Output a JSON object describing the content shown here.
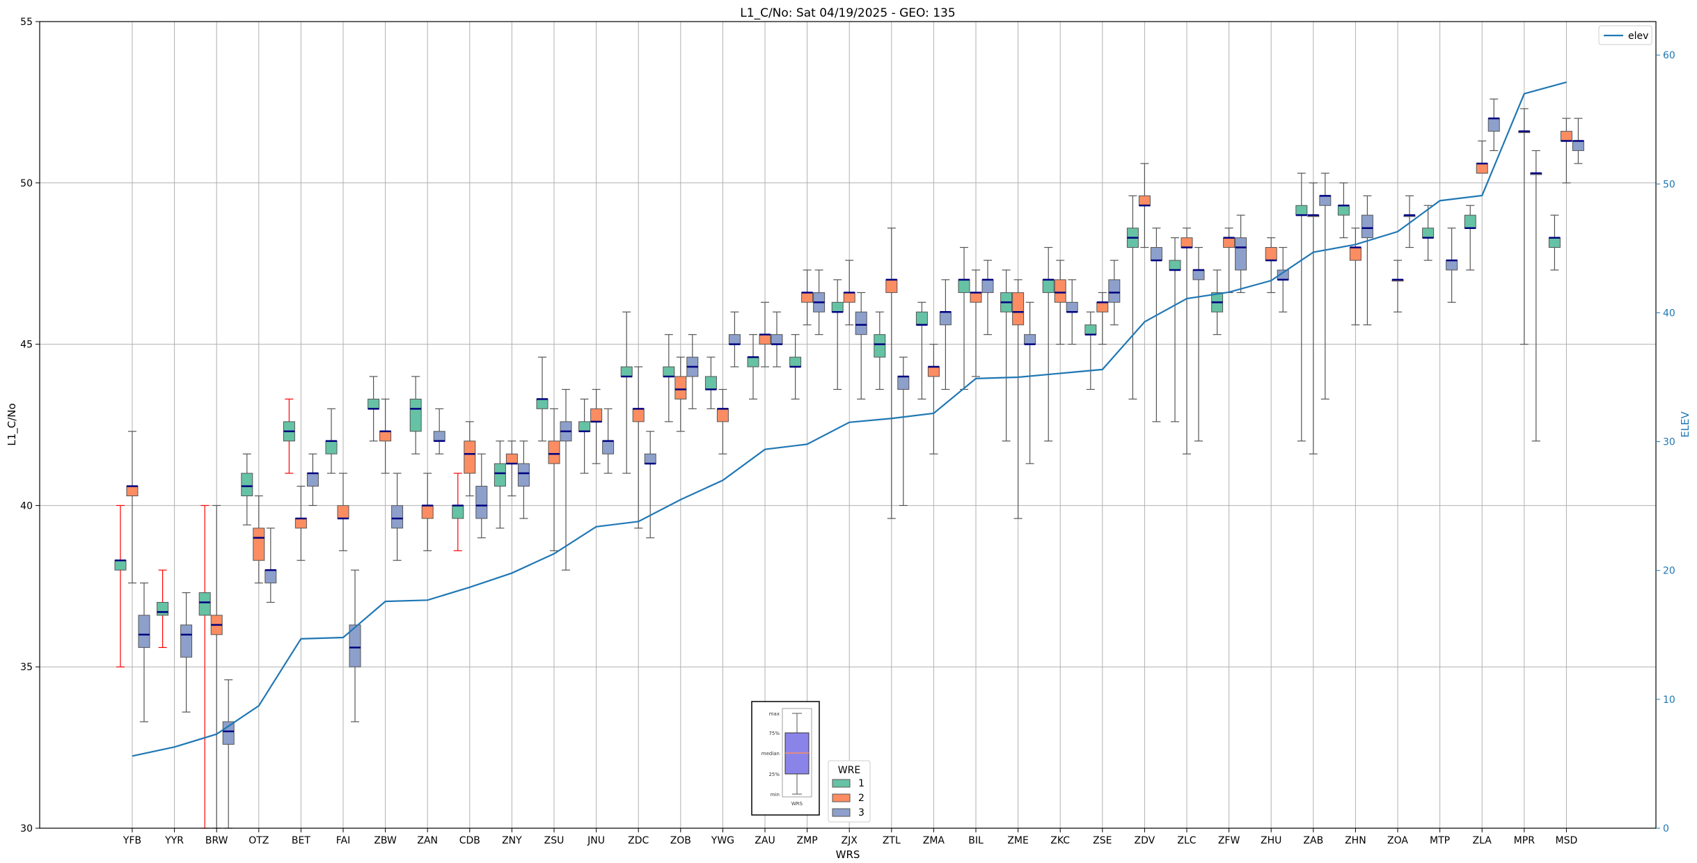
{
  "chart_data": {
    "type": "box",
    "title": "L1_C/No: Sat 04/19/2025 - GEO: 135",
    "xlabel": "WRS",
    "ylabel": "L1_C/No",
    "ylabel_right": "ELEV",
    "ylim": [
      30,
      55
    ],
    "ylim_right": [
      0,
      62.6
    ],
    "yticks": [
      30,
      35,
      40,
      45,
      50,
      55
    ],
    "yticks_right": [
      0,
      10,
      20,
      30,
      40,
      50,
      60
    ],
    "grid": true,
    "colors": {
      "wre1": "#66c2a5",
      "wre2": "#fc8d62",
      "wre3": "#8da0cb",
      "elev": "#1f77b4",
      "median": "#000080",
      "whisker": "#555555",
      "whisker_alt": "#ff0000"
    },
    "categories": [
      "YFB",
      "YYR",
      "BRW",
      "OTZ",
      "BET",
      "FAI",
      "ZBW",
      "ZAN",
      "CDB",
      "ZNY",
      "ZSU",
      "JNU",
      "ZDC",
      "ZOB",
      "YWG",
      "ZAU",
      "ZMP",
      "ZJX",
      "ZTL",
      "ZMA",
      "BIL",
      "ZME",
      "ZKC",
      "ZSE",
      "ZDV",
      "ZLC",
      "ZFW",
      "ZHU",
      "ZAB",
      "ZHN",
      "ZOA",
      "MTP",
      "ZLA",
      "MPR",
      "MSD"
    ],
    "elev": [
      5.6,
      6.3,
      7.3,
      9.5,
      14.7,
      14.8,
      17.6,
      17.7,
      18.7,
      19.8,
      21.3,
      23.4,
      23.8,
      25.5,
      27.0,
      29.4,
      29.8,
      31.5,
      31.8,
      32.2,
      34.9,
      35.0,
      35.3,
      35.6,
      39.3,
      41.1,
      41.6,
      42.5,
      44.7,
      45.3,
      46.3,
      48.7,
      49.1,
      57.0,
      57.9
    ],
    "series": [
      {
        "name": "1",
        "boxes": [
          {
            "cat": "YFB",
            "min": 35.0,
            "q1": 38.0,
            "med": 38.3,
            "q3": 38.3,
            "max": 40.0,
            "red": true
          },
          {
            "cat": "YYR",
            "min": 35.6,
            "q1": 36.6,
            "med": 36.7,
            "q3": 37.0,
            "max": 38.0,
            "red": true
          },
          {
            "cat": "BRW",
            "min": 30.0,
            "q1": 36.6,
            "med": 37.0,
            "q3": 37.3,
            "max": 40.0,
            "red": true
          },
          {
            "cat": "OTZ",
            "min": 39.4,
            "q1": 40.3,
            "med": 40.6,
            "q3": 41.0,
            "max": 41.6
          },
          {
            "cat": "BET",
            "min": 41.0,
            "q1": 42.0,
            "med": 42.3,
            "q3": 42.6,
            "max": 43.3,
            "red": true
          },
          {
            "cat": "FAI",
            "min": 41.0,
            "q1": 41.6,
            "med": 42.0,
            "q3": 42.0,
            "max": 43.0
          },
          {
            "cat": "ZBW",
            "min": 42.0,
            "q1": 43.0,
            "med": 43.0,
            "q3": 43.3,
            "max": 44.0
          },
          {
            "cat": "ZAN",
            "min": 41.6,
            "q1": 42.3,
            "med": 43.0,
            "q3": 43.3,
            "max": 44.0
          },
          {
            "cat": "CDB",
            "min": 38.6,
            "q1": 39.6,
            "med": 40.0,
            "q3": 40.0,
            "max": 41.0,
            "red": true
          },
          {
            "cat": "ZNY",
            "min": 39.3,
            "q1": 40.6,
            "med": 41.0,
            "q3": 41.3,
            "max": 42.0
          },
          {
            "cat": "ZSU",
            "min": 42.0,
            "q1": 43.0,
            "med": 43.3,
            "q3": 43.3,
            "max": 44.6
          },
          {
            "cat": "JNU",
            "min": 41.0,
            "q1": 42.3,
            "med": 42.3,
            "q3": 42.6,
            "max": 43.3
          },
          {
            "cat": "ZDC",
            "min": 41.0,
            "q1": 44.0,
            "med": 44.0,
            "q3": 44.3,
            "max": 46.0
          },
          {
            "cat": "ZOB",
            "min": 42.6,
            "q1": 44.0,
            "med": 44.0,
            "q3": 44.3,
            "max": 45.3
          },
          {
            "cat": "YWG",
            "min": 43.0,
            "q1": 43.6,
            "med": 43.6,
            "q3": 44.0,
            "max": 44.6
          },
          {
            "cat": "ZAU",
            "min": 43.3,
            "q1": 44.3,
            "med": 44.6,
            "q3": 44.6,
            "max": 45.3
          },
          {
            "cat": "ZMP",
            "min": 43.3,
            "q1": 44.3,
            "med": 44.3,
            "q3": 44.6,
            "max": 45.3
          },
          {
            "cat": "ZJX",
            "min": 43.6,
            "q1": 46.0,
            "med": 46.0,
            "q3": 46.3,
            "max": 47.0
          },
          {
            "cat": "ZTL",
            "min": 43.6,
            "q1": 44.6,
            "med": 45.0,
            "q3": 45.3,
            "max": 46.0
          },
          {
            "cat": "ZMA",
            "min": 43.3,
            "q1": 45.6,
            "med": 45.6,
            "q3": 46.0,
            "max": 46.3
          },
          {
            "cat": "BIL",
            "min": 43.6,
            "q1": 46.6,
            "med": 47.0,
            "q3": 47.0,
            "max": 48.0
          },
          {
            "cat": "ZME",
            "min": 42.0,
            "q1": 46.0,
            "med": 46.3,
            "q3": 46.6,
            "max": 47.3
          },
          {
            "cat": "ZKC",
            "min": 42.0,
            "q1": 46.6,
            "med": 47.0,
            "q3": 47.0,
            "max": 48.0
          },
          {
            "cat": "ZSE",
            "min": 43.6,
            "q1": 45.3,
            "med": 45.3,
            "q3": 45.6,
            "max": 46.0
          },
          {
            "cat": "ZDV",
            "min": 43.3,
            "q1": 48.0,
            "med": 48.3,
            "q3": 48.6,
            "max": 49.6
          },
          {
            "cat": "ZLC",
            "min": 42.6,
            "q1": 47.3,
            "med": 47.3,
            "q3": 47.6,
            "max": 48.3
          },
          {
            "cat": "ZFW",
            "min": 45.3,
            "q1": 46.0,
            "med": 46.3,
            "q3": 46.6,
            "max": 47.3
          },
          {
            "cat": "ZAB",
            "min": 42.0,
            "q1": 49.0,
            "med": 49.0,
            "q3": 49.3,
            "max": 50.3
          },
          {
            "cat": "ZHN",
            "min": 48.3,
            "q1": 49.0,
            "med": 49.3,
            "q3": 49.3,
            "max": 50.0
          },
          {
            "cat": "MTP",
            "min": 47.6,
            "q1": 48.3,
            "med": 48.3,
            "q3": 48.6,
            "max": 49.3
          },
          {
            "cat": "ZLA",
            "min": 47.3,
            "q1": 48.6,
            "med": 48.6,
            "q3": 49.0,
            "max": 49.3
          },
          {
            "cat": "MSD",
            "min": 47.3,
            "q1": 48.0,
            "med": 48.3,
            "q3": 48.3,
            "max": 49.0
          }
        ]
      },
      {
        "name": "2",
        "boxes": [
          {
            "cat": "YFB",
            "min": 37.6,
            "q1": 40.3,
            "med": 40.6,
            "q3": 40.6,
            "max": 42.3
          },
          {
            "cat": "BRW",
            "min": 30.0,
            "q1": 36.0,
            "med": 36.3,
            "q3": 36.6,
            "max": 40.0
          },
          {
            "cat": "OTZ",
            "min": 37.6,
            "q1": 38.3,
            "med": 39.0,
            "q3": 39.3,
            "max": 40.3
          },
          {
            "cat": "BET",
            "min": 38.3,
            "q1": 39.3,
            "med": 39.6,
            "q3": 39.6,
            "max": 40.6
          },
          {
            "cat": "FAI",
            "min": 38.6,
            "q1": 39.6,
            "med": 39.6,
            "q3": 40.0,
            "max": 41.0
          },
          {
            "cat": "ZBW",
            "min": 41.0,
            "q1": 42.0,
            "med": 42.3,
            "q3": 42.3,
            "max": 43.3
          },
          {
            "cat": "ZAN",
            "min": 38.6,
            "q1": 39.6,
            "med": 40.0,
            "q3": 40.0,
            "max": 41.0
          },
          {
            "cat": "CDB",
            "min": 40.3,
            "q1": 41.0,
            "med": 41.6,
            "q3": 42.0,
            "max": 42.6
          },
          {
            "cat": "ZNY",
            "min": 40.3,
            "q1": 41.3,
            "med": 41.3,
            "q3": 41.6,
            "max": 42.0
          },
          {
            "cat": "ZSU",
            "min": 38.6,
            "q1": 41.3,
            "med": 41.6,
            "q3": 42.0,
            "max": 43.0
          },
          {
            "cat": "JNU",
            "min": 41.3,
            "q1": 42.6,
            "med": 42.6,
            "q3": 43.0,
            "max": 43.6
          },
          {
            "cat": "ZDC",
            "min": 39.3,
            "q1": 42.6,
            "med": 43.0,
            "q3": 43.0,
            "max": 44.3
          },
          {
            "cat": "ZOB",
            "min": 42.3,
            "q1": 43.3,
            "med": 43.6,
            "q3": 44.0,
            "max": 44.6
          },
          {
            "cat": "YWG",
            "min": 41.6,
            "q1": 42.6,
            "med": 43.0,
            "q3": 43.0,
            "max": 43.6
          },
          {
            "cat": "ZAU",
            "min": 44.3,
            "q1": 45.0,
            "med": 45.3,
            "q3": 45.3,
            "max": 46.3
          },
          {
            "cat": "ZMP",
            "min": 45.6,
            "q1": 46.3,
            "med": 46.6,
            "q3": 46.6,
            "max": 47.3
          },
          {
            "cat": "ZJX",
            "min": 45.6,
            "q1": 46.3,
            "med": 46.6,
            "q3": 46.6,
            "max": 47.6
          },
          {
            "cat": "ZTL",
            "min": 39.6,
            "q1": 46.6,
            "med": 47.0,
            "q3": 47.0,
            "max": 48.6
          },
          {
            "cat": "ZMA",
            "min": 41.6,
            "q1": 44.0,
            "med": 44.3,
            "q3": 44.3,
            "max": 45.0
          },
          {
            "cat": "BIL",
            "min": 44.0,
            "q1": 46.3,
            "med": 46.6,
            "q3": 46.6,
            "max": 47.3
          },
          {
            "cat": "ZME",
            "min": 39.6,
            "q1": 45.6,
            "med": 46.0,
            "q3": 46.6,
            "max": 47.0
          },
          {
            "cat": "ZKC",
            "min": 45.0,
            "q1": 46.3,
            "med": 46.6,
            "q3": 47.0,
            "max": 47.6
          },
          {
            "cat": "ZSE",
            "min": 45.0,
            "q1": 46.0,
            "med": 46.3,
            "q3": 46.3,
            "max": 46.6
          },
          {
            "cat": "ZDV",
            "min": 48.0,
            "q1": 49.3,
            "med": 49.3,
            "q3": 49.6,
            "max": 50.6
          },
          {
            "cat": "ZLC",
            "min": 41.6,
            "q1": 48.0,
            "med": 48.0,
            "q3": 48.3,
            "max": 48.6
          },
          {
            "cat": "ZFW",
            "min": 46.6,
            "q1": 48.0,
            "med": 48.3,
            "q3": 48.3,
            "max": 48.6
          },
          {
            "cat": "ZHU",
            "min": 46.6,
            "q1": 47.6,
            "med": 47.6,
            "q3": 48.0,
            "max": 48.3
          },
          {
            "cat": "ZAB",
            "min": 41.6,
            "q1": 49.0,
            "med": 49.0,
            "q3": 49.0,
            "max": 50.0
          },
          {
            "cat": "ZHN",
            "min": 45.6,
            "q1": 47.6,
            "med": 48.0,
            "q3": 48.0,
            "max": 48.6
          },
          {
            "cat": "ZOA",
            "min": 46.0,
            "q1": 47.0,
            "med": 47.0,
            "q3": 47.0,
            "max": 47.6
          },
          {
            "cat": "ZLA",
            "min": 50.3,
            "q1": 50.3,
            "med": 50.6,
            "q3": 50.6,
            "max": 51.3
          },
          {
            "cat": "MPR",
            "min": 45.0,
            "q1": 51.6,
            "med": 51.6,
            "q3": 51.6,
            "max": 52.3
          },
          {
            "cat": "MSD",
            "min": 50.0,
            "q1": 51.3,
            "med": 51.3,
            "q3": 51.6,
            "max": 52.0
          }
        ]
      },
      {
        "name": "3",
        "boxes": [
          {
            "cat": "YFB",
            "min": 33.3,
            "q1": 35.6,
            "med": 36.0,
            "q3": 36.6,
            "max": 37.6
          },
          {
            "cat": "YYR",
            "min": 33.6,
            "q1": 35.3,
            "med": 36.0,
            "q3": 36.3,
            "max": 37.3
          },
          {
            "cat": "BRW",
            "min": 30.0,
            "q1": 32.6,
            "med": 33.0,
            "q3": 33.3,
            "max": 34.6
          },
          {
            "cat": "OTZ",
            "min": 37.0,
            "q1": 37.6,
            "med": 38.0,
            "q3": 38.0,
            "max": 39.3
          },
          {
            "cat": "BET",
            "min": 40.0,
            "q1": 40.6,
            "med": 41.0,
            "q3": 41.0,
            "max": 41.6
          },
          {
            "cat": "FAI",
            "min": 33.3,
            "q1": 35.0,
            "med": 35.6,
            "q3": 36.3,
            "max": 38.0
          },
          {
            "cat": "ZBW",
            "min": 38.3,
            "q1": 39.3,
            "med": 39.6,
            "q3": 40.0,
            "max": 41.0
          },
          {
            "cat": "ZAN",
            "min": 41.6,
            "q1": 42.0,
            "med": 42.0,
            "q3": 42.3,
            "max": 43.0
          },
          {
            "cat": "CDB",
            "min": 39.0,
            "q1": 39.6,
            "med": 40.0,
            "q3": 40.6,
            "max": 41.6
          },
          {
            "cat": "ZNY",
            "min": 39.6,
            "q1": 40.6,
            "med": 41.0,
            "q3": 41.3,
            "max": 42.0
          },
          {
            "cat": "ZSU",
            "min": 38.0,
            "q1": 42.0,
            "med": 42.3,
            "q3": 42.6,
            "max": 43.6
          },
          {
            "cat": "JNU",
            "min": 41.0,
            "q1": 41.6,
            "med": 42.0,
            "q3": 42.0,
            "max": 43.0
          },
          {
            "cat": "ZDC",
            "min": 39.0,
            "q1": 41.3,
            "med": 41.3,
            "q3": 41.6,
            "max": 42.3
          },
          {
            "cat": "ZOB",
            "min": 43.0,
            "q1": 44.0,
            "med": 44.3,
            "q3": 44.6,
            "max": 45.3
          },
          {
            "cat": "YWG",
            "min": 44.3,
            "q1": 45.0,
            "med": 45.0,
            "q3": 45.3,
            "max": 46.0
          },
          {
            "cat": "ZAU",
            "min": 44.3,
            "q1": 45.0,
            "med": 45.0,
            "q3": 45.3,
            "max": 46.0
          },
          {
            "cat": "ZMP",
            "min": 45.3,
            "q1": 46.0,
            "med": 46.3,
            "q3": 46.6,
            "max": 47.3
          },
          {
            "cat": "ZJX",
            "min": 43.3,
            "q1": 45.3,
            "med": 45.6,
            "q3": 46.0,
            "max": 46.6
          },
          {
            "cat": "ZTL",
            "min": 40.0,
            "q1": 43.6,
            "med": 44.0,
            "q3": 44.0,
            "max": 44.6
          },
          {
            "cat": "ZMA",
            "min": 43.6,
            "q1": 45.6,
            "med": 46.0,
            "q3": 46.0,
            "max": 47.0
          },
          {
            "cat": "BIL",
            "min": 45.3,
            "q1": 46.6,
            "med": 47.0,
            "q3": 47.0,
            "max": 47.6
          },
          {
            "cat": "ZME",
            "min": 41.3,
            "q1": 45.0,
            "med": 45.0,
            "q3": 45.3,
            "max": 46.3
          },
          {
            "cat": "ZKC",
            "min": 45.0,
            "q1": 46.0,
            "med": 46.0,
            "q3": 46.3,
            "max": 47.0
          },
          {
            "cat": "ZSE",
            "min": 45.6,
            "q1": 46.3,
            "med": 46.6,
            "q3": 47.0,
            "max": 47.6
          },
          {
            "cat": "ZDV",
            "min": 42.6,
            "q1": 47.6,
            "med": 47.6,
            "q3": 48.0,
            "max": 48.6
          },
          {
            "cat": "ZLC",
            "min": 42.0,
            "q1": 47.0,
            "med": 47.3,
            "q3": 47.3,
            "max": 48.0
          },
          {
            "cat": "ZFW",
            "min": 46.6,
            "q1": 47.3,
            "med": 48.0,
            "q3": 48.3,
            "max": 49.0
          },
          {
            "cat": "ZHU",
            "min": 46.0,
            "q1": 47.0,
            "med": 47.0,
            "q3": 47.3,
            "max": 48.0
          },
          {
            "cat": "ZAB",
            "min": 43.3,
            "q1": 49.3,
            "med": 49.6,
            "q3": 49.6,
            "max": 50.3
          },
          {
            "cat": "ZHN",
            "min": 45.6,
            "q1": 48.3,
            "med": 48.6,
            "q3": 49.0,
            "max": 49.6
          },
          {
            "cat": "ZOA",
            "min": 48.0,
            "q1": 49.0,
            "med": 49.0,
            "q3": 49.0,
            "max": 49.6
          },
          {
            "cat": "MTP",
            "min": 46.3,
            "q1": 47.3,
            "med": 47.6,
            "q3": 47.6,
            "max": 48.6
          },
          {
            "cat": "ZLA",
            "min": 51.0,
            "q1": 51.6,
            "med": 52.0,
            "q3": 52.0,
            "max": 52.6
          },
          {
            "cat": "MPR",
            "min": 42.0,
            "q1": 50.3,
            "med": 50.3,
            "q3": 50.3,
            "max": 51.0
          },
          {
            "cat": "MSD",
            "min": 50.6,
            "q1": 51.0,
            "med": 51.3,
            "q3": 51.3,
            "max": 52.0
          }
        ]
      }
    ],
    "legend": {
      "title": "WRE",
      "placement": "bottom-center",
      "entries": [
        "1",
        "2",
        "3"
      ]
    },
    "line_legend": {
      "placement": "top-right",
      "entries": [
        "elev"
      ]
    },
    "key_box": {
      "labels": [
        "max",
        "75%",
        "median",
        "25%",
        "min"
      ],
      "caption": "WRS"
    }
  }
}
